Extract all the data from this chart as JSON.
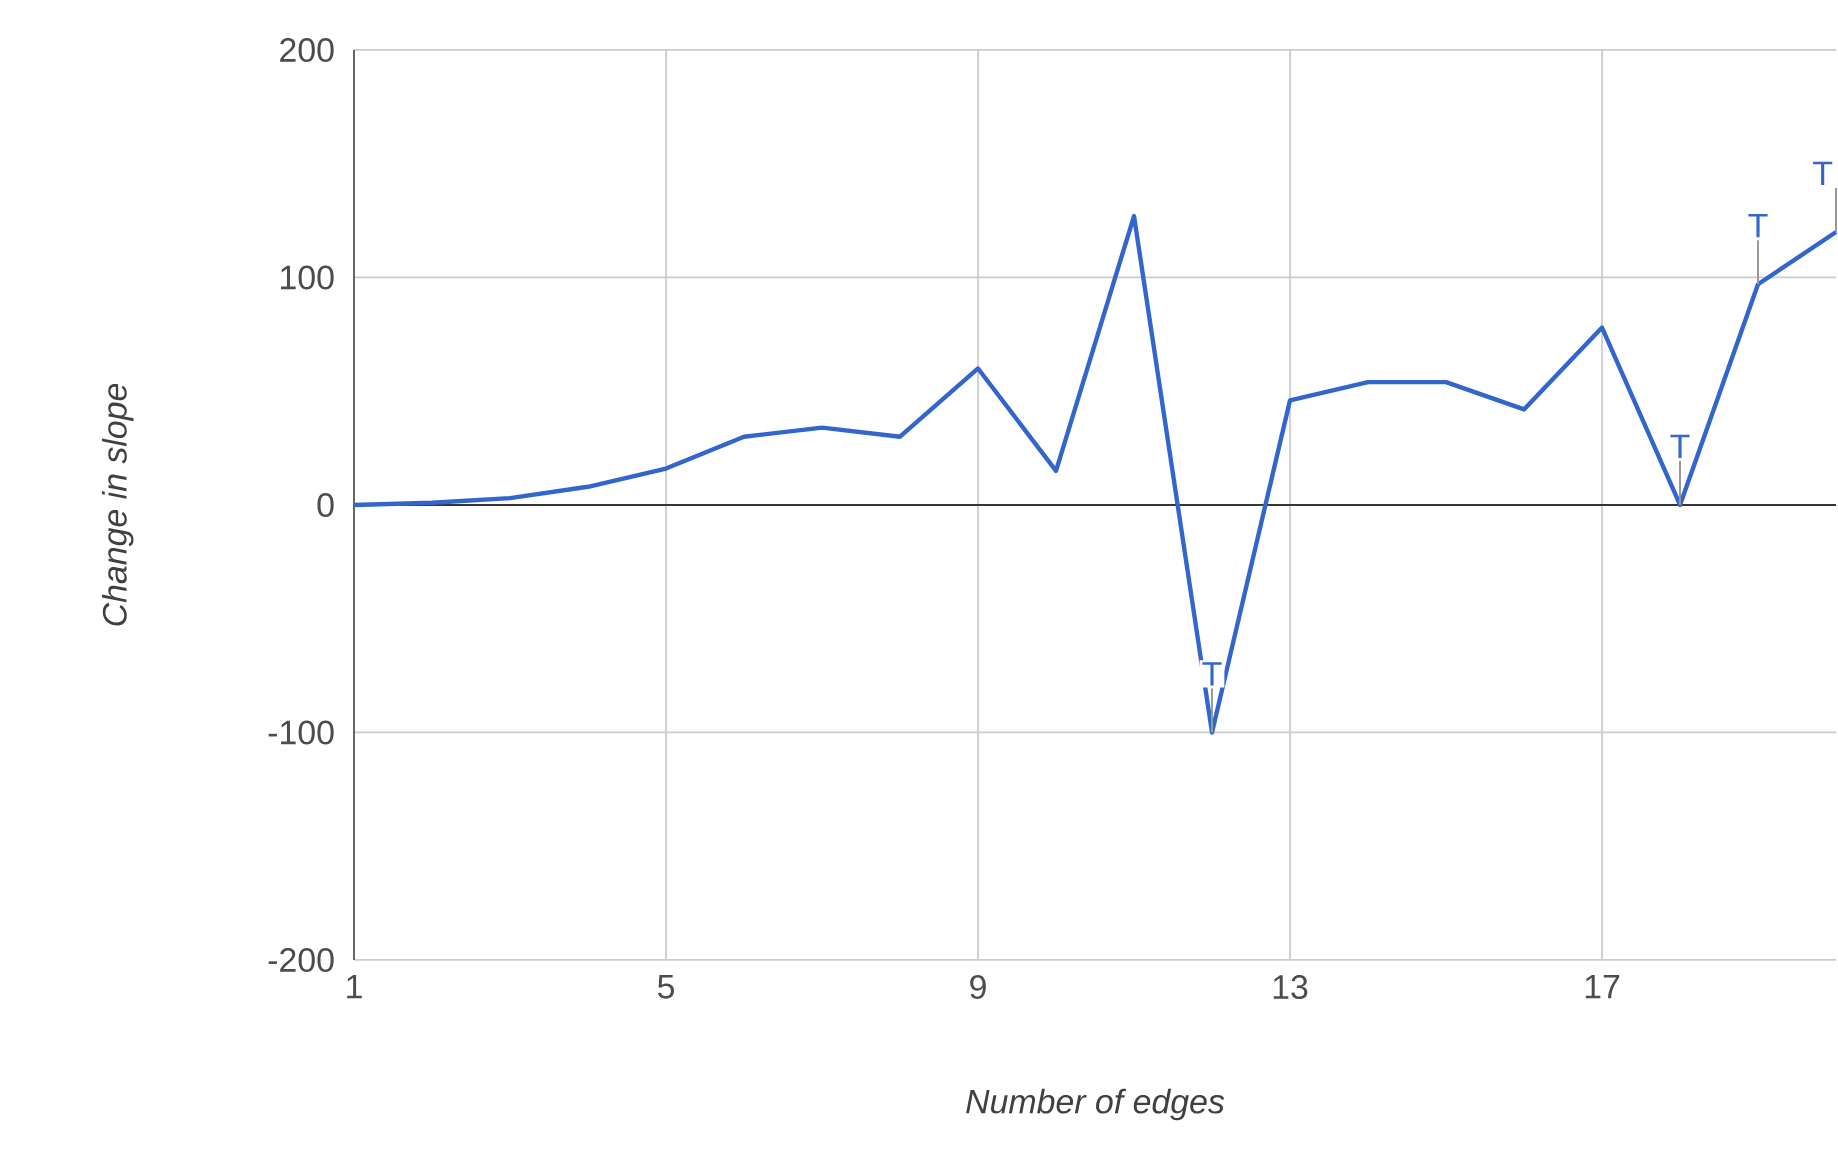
{
  "chart_data": {
    "type": "line",
    "xlabel": "Number of edges",
    "ylabel": "Change in slope",
    "x": [
      1,
      2,
      3,
      4,
      5,
      6,
      7,
      8,
      9,
      10,
      11,
      12,
      13,
      14,
      15,
      16,
      17,
      18,
      19,
      20
    ],
    "series": [
      {
        "color": "#3366cc",
        "values": [
          0,
          1,
          3,
          8,
          16,
          30,
          34,
          30,
          60,
          15,
          127,
          -100,
          46,
          54,
          54,
          42,
          78,
          0,
          97,
          120
        ]
      }
    ],
    "xlim": [
      1,
      20
    ],
    "ylim": [
      -200,
      200
    ],
    "xticks": [
      1,
      5,
      9,
      13,
      17
    ],
    "yticks": [
      -200,
      -100,
      0,
      100,
      200
    ],
    "grid": true,
    "marker": "none",
    "line_style": "solid",
    "annotations": [
      {
        "text": "T",
        "x": 12,
        "y": -100
      },
      {
        "text": "T",
        "x": 18,
        "y": 0
      },
      {
        "text": "T",
        "x": 19,
        "y": 97
      },
      {
        "text": "T",
        "x": 20,
        "y": 120
      }
    ]
  }
}
